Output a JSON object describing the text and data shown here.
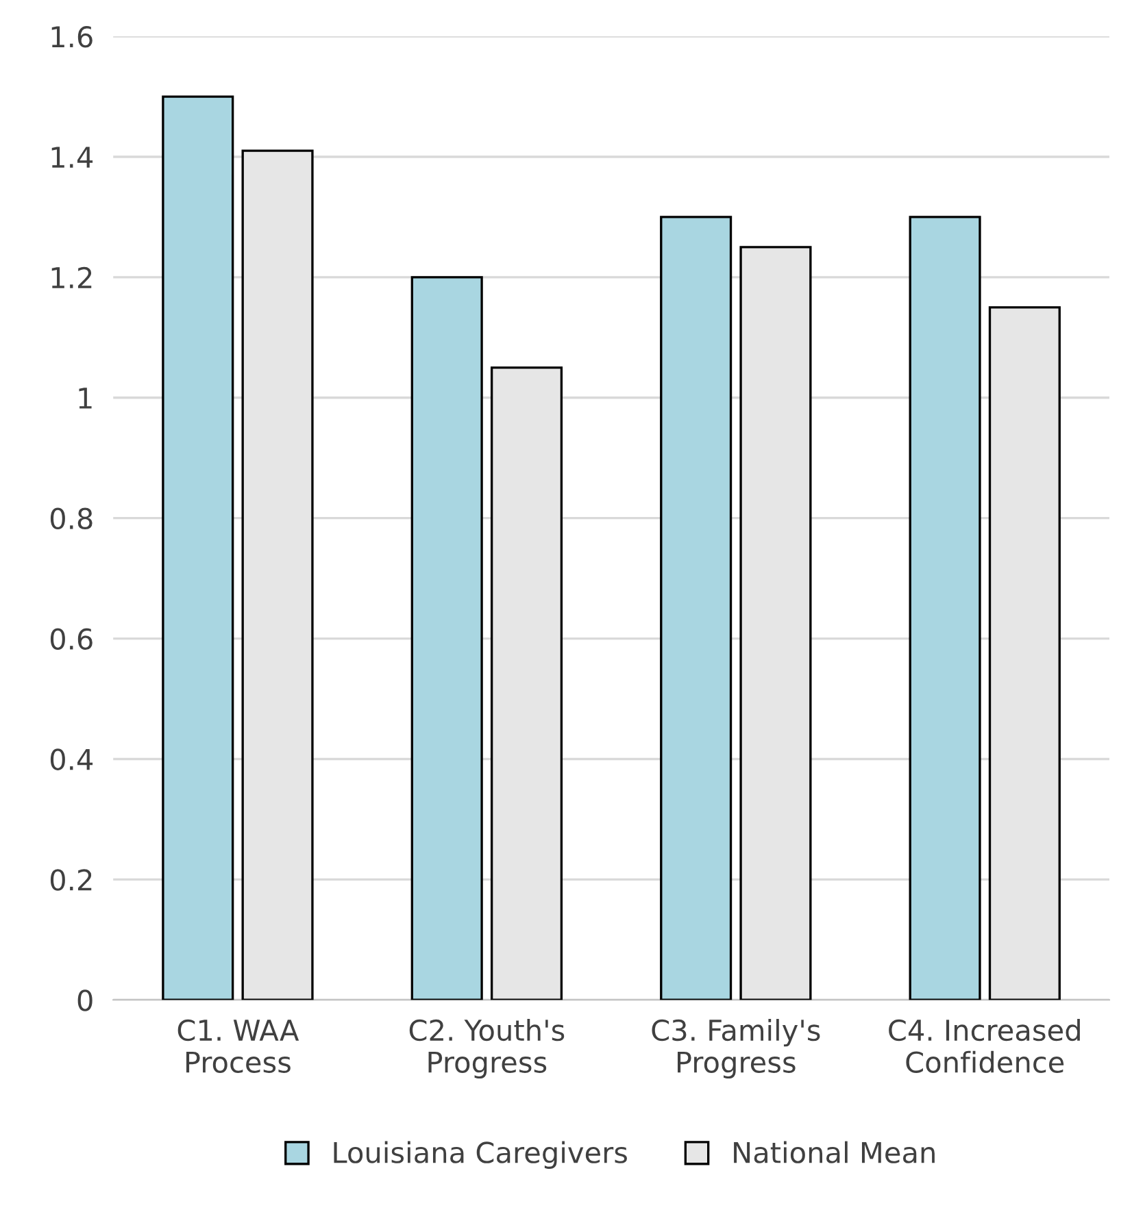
{
  "chart_data": {
    "type": "bar",
    "categories": [
      "C1. WAA\nProcess",
      "C2. Youth's\nProgress",
      "C3. Family's\nProgress",
      "C4. Increased\nConfidence"
    ],
    "series": [
      {
        "name": "Louisiana Caregivers",
        "color": "#a9d6e1",
        "values": [
          1.5,
          1.2,
          1.3,
          1.3
        ]
      },
      {
        "name": "National Mean",
        "color": "#e6e6e6",
        "values": [
          1.41,
          1.05,
          1.25,
          1.15
        ]
      }
    ],
    "ylim": [
      0,
      1.6
    ],
    "yticks": [
      0,
      0.2,
      0.4,
      0.6,
      0.8,
      1,
      1.2,
      1.4,
      1.6
    ],
    "grid": "y",
    "legend": "bottom"
  }
}
